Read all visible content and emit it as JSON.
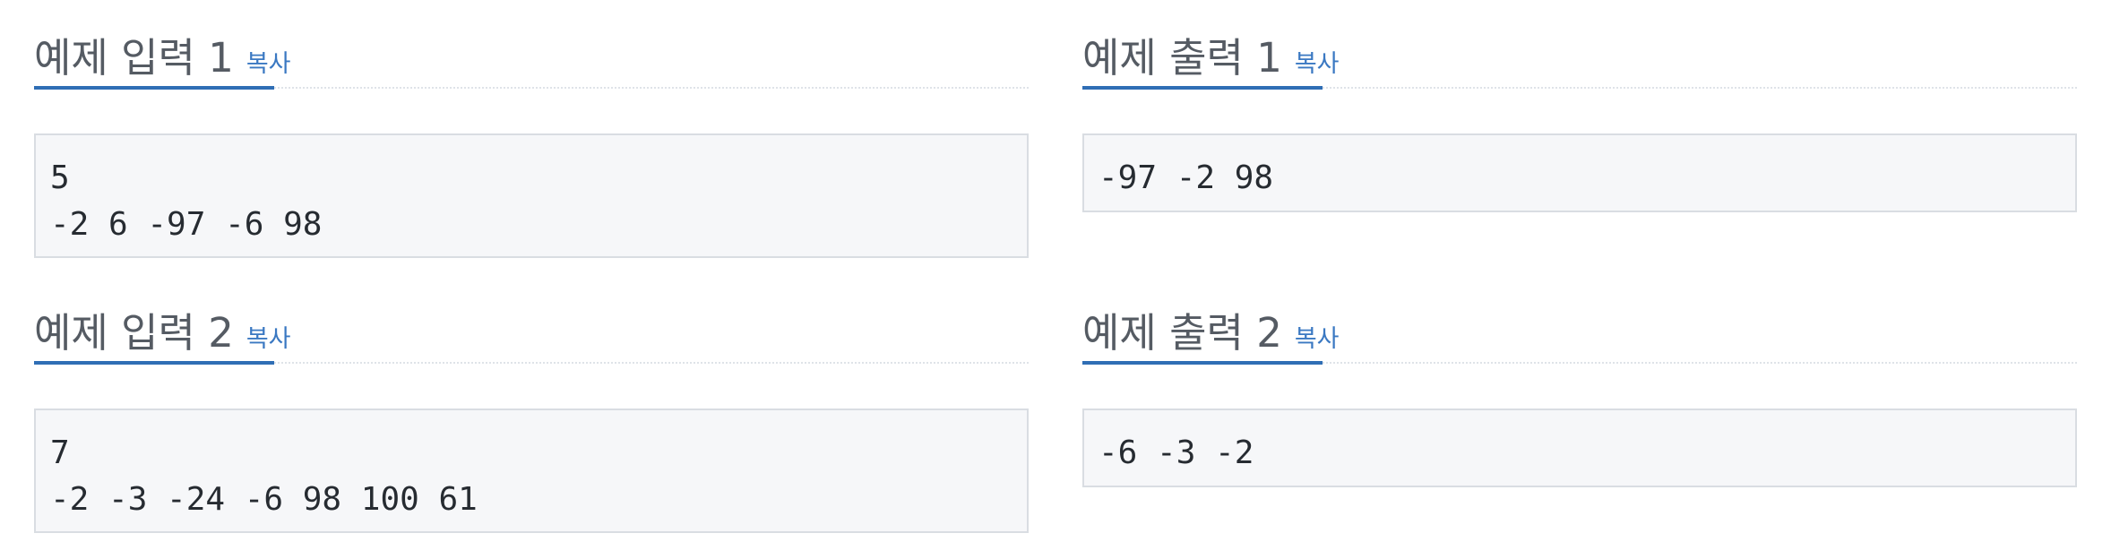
{
  "samples": [
    {
      "title": "예제 입력 1",
      "copy_label": "복사",
      "lines": [
        "5",
        "-2 6 -97 -6 98"
      ]
    },
    {
      "title": "예제 출력 1",
      "copy_label": "복사",
      "lines": [
        "-97 -2 98"
      ]
    },
    {
      "title": "예제 입력 2",
      "copy_label": "복사",
      "lines": [
        "7",
        "-2 -3 -24 -6 98 100 61"
      ]
    },
    {
      "title": "예제 출력 2",
      "copy_label": "복사",
      "lines": [
        "-6 -3 -2"
      ]
    }
  ],
  "colors": {
    "accent": "#2f6eb5",
    "link": "#3a78c2",
    "title": "#555b63",
    "sample_bg": "#f6f7f9",
    "sample_border": "#d9dde2"
  }
}
